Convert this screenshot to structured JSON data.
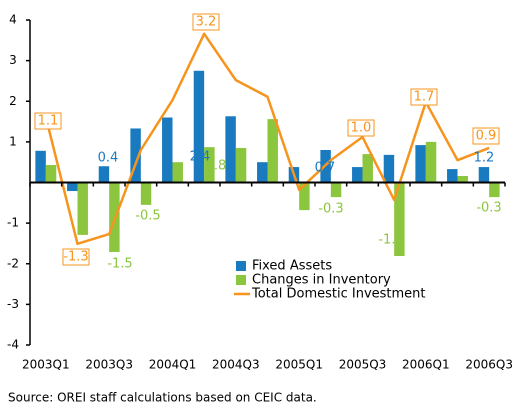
{
  "chart_data": {
    "type": "bar-line",
    "categories": [
      "2003Q1",
      null,
      "2003Q3",
      null,
      "2004Q1",
      null,
      "2004Q3",
      null,
      "2005Q1",
      null,
      "2005Q3",
      null,
      "2006Q1",
      null,
      "2006Q3"
    ],
    "series": [
      {
        "name": "Fixed Assets",
        "type": "bar",
        "color": "#1a7abf",
        "values": [
          0.78,
          -0.21,
          0.4,
          1.33,
          1.6,
          2.75,
          1.63,
          0.5,
          0.38,
          0.8,
          0.38,
          0.68,
          0.92,
          0.33,
          0.38
        ]
      },
      {
        "name": "Changes in Inventory",
        "type": "bar",
        "color": "#8cc63f",
        "values": [
          0.43,
          -1.29,
          -1.71,
          -0.55,
          0.5,
          0.87,
          0.85,
          1.56,
          -0.68,
          -0.36,
          0.7,
          -1.81,
          1.0,
          0.16,
          -0.36
        ]
      },
      {
        "name": "Total Domestic Investment",
        "type": "line",
        "color": "#f7941d",
        "values": [
          1.61,
          -1.51,
          -1.27,
          0.8,
          2.03,
          3.66,
          2.52,
          2.11,
          -0.18,
          0.55,
          1.12,
          -0.43,
          1.98,
          0.55,
          0.85
        ]
      }
    ],
    "ylim": [
      -4,
      4
    ],
    "yticks": [
      -4,
      -3,
      -2,
      -1,
      1,
      2,
      3,
      4
    ],
    "annotations": [
      {
        "text": "1.1",
        "color": "#f7941d",
        "boxed": true
      },
      {
        "text": "-1.3",
        "color": "#f7941d",
        "boxed": true
      },
      {
        "text": "0.4",
        "color": "#1a7abf",
        "boxed": false
      },
      {
        "text": "-1.5",
        "color": "#8cc63f",
        "boxed": false
      },
      {
        "text": "-0.5",
        "color": "#8cc63f",
        "boxed": false
      },
      {
        "text": "3.2",
        "color": "#f7941d",
        "boxed": true
      },
      {
        "text": "2.4",
        "color": "#1a7abf",
        "boxed": false
      },
      {
        "text": "0.8",
        "color": "#8cc63f",
        "boxed": false
      },
      {
        "text": "0.7",
        "color": "#1a7abf",
        "boxed": false
      },
      {
        "text": "-0.3",
        "color": "#8cc63f",
        "boxed": false
      },
      {
        "text": "1.0",
        "color": "#f7941d",
        "boxed": true
      },
      {
        "text": "-1.0",
        "color": "#8cc63f",
        "boxed": false
      },
      {
        "text": "1.7",
        "color": "#f7941d",
        "boxed": true
      },
      {
        "text": "0.9",
        "color": "#f7941d",
        "boxed": true
      },
      {
        "text": "1.2",
        "color": "#1a7abf",
        "boxed": false
      },
      {
        "text": "-0.3",
        "color": "#8cc63f",
        "boxed": false
      }
    ],
    "source": "Source: OREI staff calculations based on CEIC data."
  }
}
